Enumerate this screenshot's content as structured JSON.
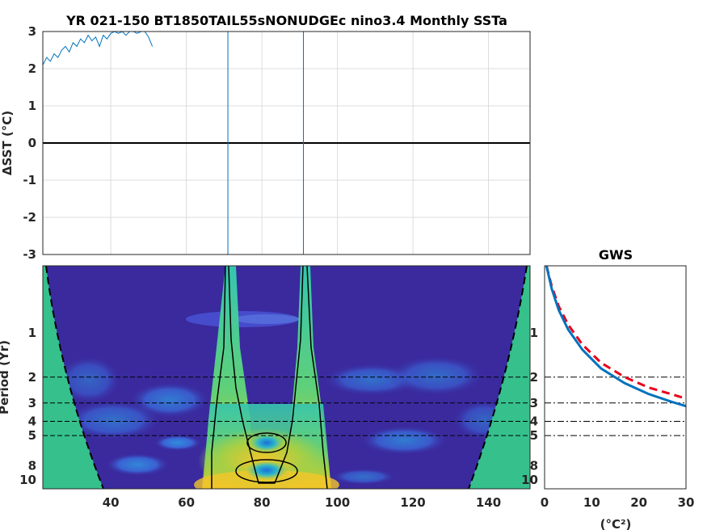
{
  "chart_data": [
    {
      "type": "line",
      "title": "YR 021-150 BT1850TAIL55sNONUDGEc nino3.4 Monthly SSTa",
      "xlabel": "",
      "ylabel": "ΔSST (°C)",
      "xlim": [
        22,
        151
      ],
      "ylim": [
        -3,
        3
      ],
      "xticks": [
        40,
        60,
        80,
        100,
        120,
        140
      ],
      "yticks": [
        "3",
        "2",
        "1",
        "0",
        "-1",
        "-2",
        "-3"
      ],
      "ytick_values": [
        3,
        2,
        1,
        0,
        -1,
        -2,
        -3
      ],
      "grid": true,
      "zero_line": 0,
      "vertical_lines_x": [
        71,
        91
      ],
      "series": [
        {
          "x": [
            22,
            23,
            24,
            25,
            26,
            27,
            28,
            29,
            30,
            31,
            32,
            33,
            34,
            35,
            36,
            37,
            38,
            39,
            40,
            41,
            42,
            43,
            44,
            45,
            46,
            47,
            48,
            49,
            50,
            51
          ],
          "values": [
            2.1,
            2.3,
            2.2,
            2.4,
            2.3,
            2.5,
            2.6,
            2.45,
            2.7,
            2.6,
            2.8,
            2.7,
            2.9,
            2.75,
            2.85,
            2.6,
            2.9,
            2.8,
            2.95,
            3.0,
            2.95,
            3.0,
            2.9,
            3.0,
            3.0,
            2.95,
            3.0,
            3.0,
            2.85,
            2.6
          ],
          "color": "#0072bd"
        }
      ]
    },
    {
      "type": "heatmap",
      "xlabel": "",
      "ylabel": "Period (Yr)",
      "xticks": [
        "40",
        "60",
        "80",
        "100",
        "120",
        "140"
      ],
      "xtick_values": [
        40,
        60,
        80,
        100,
        120,
        140
      ],
      "yticks": [
        "1",
        "2",
        "3",
        "4",
        "5",
        "8",
        "10"
      ],
      "ytick_values": [
        1,
        2,
        3,
        4,
        5,
        8,
        10
      ],
      "xlim": [
        22,
        151
      ],
      "period_range": [
        0.35,
        11.5
      ],
      "y_scale": "log",
      "period_reference_lines": [
        2,
        3,
        4,
        5
      ],
      "colors": {
        "low": "#3a2a9e",
        "mid": "#1fb5c9",
        "high": "#f5c922",
        "coi": "#35c08c"
      }
    },
    {
      "type": "line",
      "title": "GWS",
      "xlabel": "(°C²)",
      "ylabel": "",
      "xlim": [
        0,
        30
      ],
      "xticks": [
        "0",
        "10",
        "20",
        "30"
      ],
      "xtick_values": [
        0,
        10,
        20,
        30
      ],
      "yticks": [
        "1",
        "2",
        "3",
        "4",
        "5",
        "8",
        "10"
      ],
      "ytick_values": [
        1,
        2,
        3,
        4,
        5,
        8,
        10
      ],
      "y_scale": "log",
      "period_reference_lines": [
        2,
        3,
        4,
        5
      ],
      "series": [
        {
          "x": [
            0.4,
            1.5,
            3,
            5,
            8,
            12,
            17,
            22,
            27,
            30
          ],
          "values": [
            0.35,
            0.5,
            0.7,
            0.95,
            1.3,
            1.75,
            2.2,
            2.6,
            2.95,
            3.15
          ],
          "color": "#0072bd",
          "style": "solid"
        },
        {
          "x": [
            0.4,
            1.5,
            3,
            5,
            8,
            12,
            17,
            22,
            27,
            30
          ],
          "values": [
            0.35,
            0.48,
            0.66,
            0.88,
            1.2,
            1.6,
            2.0,
            2.35,
            2.62,
            2.8
          ],
          "color": "#e8001c",
          "style": "dashed"
        }
      ]
    }
  ]
}
